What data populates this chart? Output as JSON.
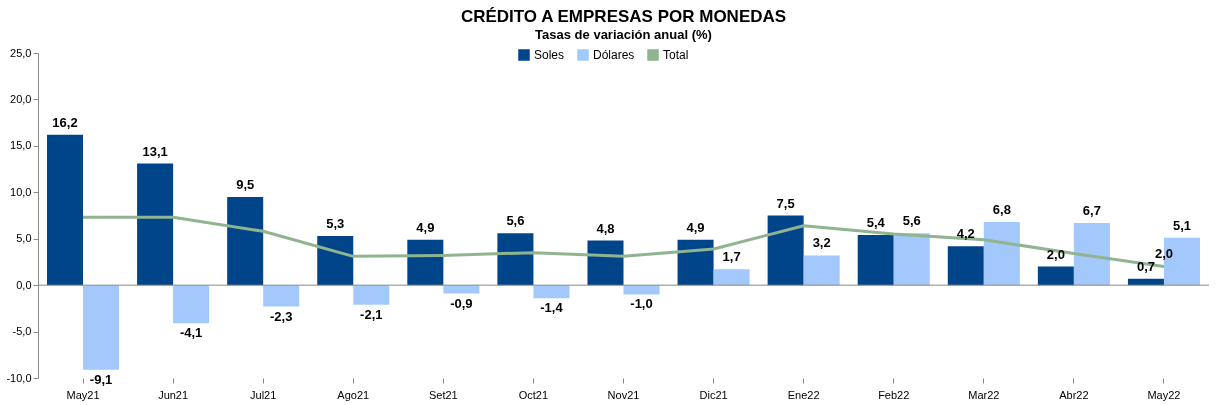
{
  "chart_data": {
    "type": "bar",
    "title": "CRÉDITO A EMPRESAS POR MONEDAS",
    "subtitle": "Tasas de variación anual (%)",
    "categories": [
      "May21",
      "Jun21",
      "Jul21",
      "Ago21",
      "Set21",
      "Oct21",
      "Nov21",
      "Dic21",
      "Ene22",
      "Feb22",
      "Mar22",
      "Abr22",
      "May22"
    ],
    "series": [
      {
        "name": "Soles",
        "color": "#00448a",
        "values": [
          16.2,
          13.1,
          9.5,
          5.3,
          4.9,
          5.6,
          4.8,
          4.9,
          7.5,
          5.4,
          4.2,
          2.0,
          0.7
        ],
        "value_labels": [
          "16,2",
          "13,1",
          "9,5",
          "5,3",
          "4,9",
          "5,6",
          "4,8",
          "4,9",
          "7,5",
          "5,4",
          "4,2",
          "2,0",
          "0,7"
        ]
      },
      {
        "name": "Dólares",
        "color": "#a3c8fb",
        "values": [
          -9.1,
          -4.1,
          -2.3,
          -2.1,
          -0.9,
          -1.4,
          -1.0,
          1.7,
          3.2,
          5.6,
          6.8,
          6.7,
          5.1
        ],
        "value_labels": [
          "-9,1",
          "-4,1",
          "-2,3",
          "-2,1",
          "-0,9",
          "-1,4",
          "-1,0",
          "1,7",
          "3,2",
          "5,6",
          "6,8",
          "6,7",
          "5,1"
        ]
      },
      {
        "name": "Total",
        "type": "line",
        "color": "#8fb48f",
        "values": [
          7.3,
          7.3,
          5.8,
          3.1,
          3.2,
          3.5,
          3.1,
          3.9,
          6.4,
          5.5,
          4.9,
          3.4,
          2.0
        ],
        "value_labels": [
          null,
          null,
          null,
          null,
          null,
          null,
          null,
          null,
          null,
          null,
          null,
          null,
          "2,0"
        ]
      }
    ],
    "ylim": [
      -10,
      25
    ],
    "yticks": [
      {
        "value": -10,
        "label": "-10,0"
      },
      {
        "value": -5,
        "label": "-5,0"
      },
      {
        "value": 0,
        "label": "0,0"
      },
      {
        "value": 5,
        "label": "5,0"
      },
      {
        "value": 10,
        "label": "10,0"
      },
      {
        "value": 15,
        "label": "15,0"
      },
      {
        "value": 20,
        "label": "20,0"
      },
      {
        "value": 25,
        "label": "25,0"
      }
    ],
    "ref_lines": [
      {
        "axis": "y",
        "value": 0,
        "color": "#888888"
      }
    ],
    "grid": false,
    "legend": "top",
    "marker": "none"
  }
}
